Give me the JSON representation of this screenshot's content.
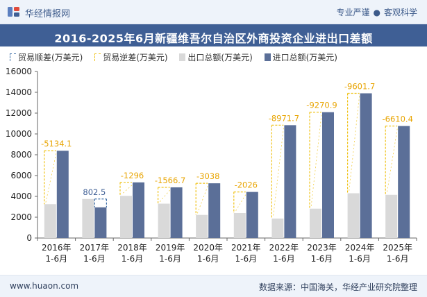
{
  "header": {
    "brand": "华经情报网",
    "tag_left": "专业严谨",
    "tag_sep": "●",
    "tag_right": "客观科学"
  },
  "footer": {
    "website": "www.huaon.com",
    "source": "数据来源：中国海关，华经产业研究院整理"
  },
  "colors": {
    "export": "#d9d9d9",
    "import": "#5b6f98",
    "surplus_border": "#3f6fa8",
    "deficit_border": "#f0c31a",
    "deficit_label": "#e8a400",
    "surplus_label": "#3f5f95"
  },
  "chart_data": {
    "type": "bar",
    "title": "2016-2025年6月新疆维吾尔自治区外商投资企业进出口差额",
    "legend": [
      {
        "key": "surplus",
        "label": "贸易顺差(万美元)"
      },
      {
        "key": "deficit",
        "label": "贸易逆差(万美元)"
      },
      {
        "key": "export",
        "label": "出口总额(万美元)"
      },
      {
        "key": "import",
        "label": "进口总额(万美元)"
      }
    ],
    "legend_position": "top-left",
    "categories": [
      [
        "2016年",
        "1-6月"
      ],
      [
        "2017年",
        "1-6月"
      ],
      [
        "2018年",
        "1-6月"
      ],
      [
        "2019年",
        "1-6月"
      ],
      [
        "2020年",
        "1-6月"
      ],
      [
        "2021年",
        "1-6月"
      ],
      [
        "2022年",
        "1-6月"
      ],
      [
        "2023年",
        "1-6月"
      ],
      [
        "2024年",
        "1-6月"
      ],
      [
        "2025年",
        "1-6月"
      ]
    ],
    "series": [
      {
        "name": "出口总额(万美元)",
        "values": [
          3250,
          3750,
          4050,
          3300,
          2220,
          2400,
          1870,
          2820,
          4300,
          4150
        ]
      },
      {
        "name": "进口总额(万美元)",
        "values": [
          8384,
          2948,
          5346,
          4867,
          5258,
          4426,
          10842,
          12091,
          13902,
          10760
        ]
      }
    ],
    "balance": {
      "values": [
        -5134.1,
        802.5,
        -1296,
        -1566.7,
        -3038,
        -2026,
        -8971.7,
        -9270.9,
        -9601.7,
        -6610.4
      ],
      "labels": [
        "-5134.1",
        "802.5",
        "-1296",
        "-1566.7",
        "-3038",
        "-2026",
        "-8971.7",
        "-9270.9",
        "-9601.7",
        "-6610.4"
      ]
    },
    "ylim": [
      0,
      16000
    ],
    "yticks": [
      0,
      2000,
      4000,
      6000,
      8000,
      10000,
      12000,
      14000,
      16000
    ],
    "grid": false
  }
}
